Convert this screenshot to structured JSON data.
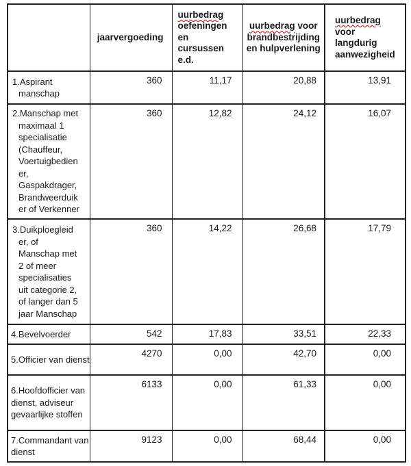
{
  "colors": {
    "spellcheck_underline": "#d20000",
    "table_border": "#222222",
    "text": "#1a1a1a"
  },
  "table": {
    "header": {
      "col1": "",
      "col2": "jaarvergoeding",
      "col3": {
        "misspelled": "uurbedrag",
        "rest": "\noefeningen\nen\ncursussen\ne.d."
      },
      "col4": {
        "misspelled": "uurbedrag",
        "rest": " voor\nbrandbestrijding\nen hulpverlening"
      },
      "col5": {
        "misspelled": "uurbedrag",
        "rest": "\nvoor\nlangdurig\naanwezigheid"
      }
    },
    "rows": [
      {
        "label": "1.Aspirant\nmanschap",
        "jaarvergoeding": "360",
        "uurbedrag_oefeningen": "11,17",
        "uurbedrag_brandbestrijding": "20,88",
        "uurbedrag_langdurig": "13,91"
      },
      {
        "label": "2.Manschap met\nmaximaal 1\nspecialisatie\n(Chauffeur,\nVoertuigbedien\ner,\nGaspakdrager,\nBrandweerduik\ner of Verkenner",
        "jaarvergoeding": "360",
        "uurbedrag_oefeningen": "12,82",
        "uurbedrag_brandbestrijding": "24,12",
        "uurbedrag_langdurig": "16,07"
      },
      {
        "label": "3.Duikploegleid\ner, of\nManschap met\n2 of meer\nspecialisaties\nuit categorie 2,\nof langer dan 5\njaar Manschap",
        "jaarvergoeding": "360",
        "uurbedrag_oefeningen": "14,22",
        "uurbedrag_brandbestrijding": "26,68",
        "uurbedrag_langdurig": "17,79"
      },
      {
        "label": "4.Bevelvoerder",
        "jaarvergoeding": "542",
        "uurbedrag_oefeningen": "17,83",
        "uurbedrag_brandbestrijding": "33,51",
        "uurbedrag_langdurig": "22,33"
      },
      {
        "label": "5.Officier van dienst",
        "jaarvergoeding": "4270",
        "uurbedrag_oefeningen": "0,00",
        "uurbedrag_brandbestrijding": "42,70",
        "uurbedrag_langdurig": "0,00"
      },
      {
        "label": "6.Hoofdofficier van\ndienst, adviseur\ngevaarlijke stoffen",
        "jaarvergoeding": "6133",
        "uurbedrag_oefeningen": "0,00",
        "uurbedrag_brandbestrijding": "61,33",
        "uurbedrag_langdurig": "0,00"
      },
      {
        "label": "7.Commandant van\ndienst",
        "jaarvergoeding": "9123",
        "uurbedrag_oefeningen": "0,00",
        "uurbedrag_brandbestrijding": "68,44",
        "uurbedrag_langdurig": "0,00"
      }
    ]
  }
}
